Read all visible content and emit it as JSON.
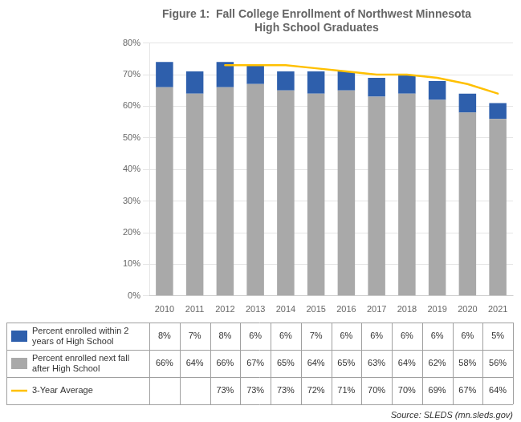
{
  "chart_data": {
    "type": "bar",
    "title": "Figure 1:  Fall College Enrollment of Northwest Minnesota\nHigh School Graduates",
    "categories": [
      2010,
      2011,
      2012,
      2013,
      2014,
      2015,
      2016,
      2017,
      2018,
      2019,
      2020,
      2021
    ],
    "series": [
      {
        "name": "Percent enrolled next fall\nafter High School",
        "type": "bar",
        "color": "#A9A9A9",
        "values": [
          66,
          64,
          66,
          67,
          65,
          64,
          65,
          63,
          64,
          62,
          58,
          56
        ],
        "value_labels": [
          "66%",
          "64%",
          "66%",
          "67%",
          "65%",
          "64%",
          "65%",
          "63%",
          "64%",
          "62%",
          "58%",
          "56%"
        ]
      },
      {
        "name": "Percent enrolled within 2\nyears of High School",
        "type": "bar",
        "color": "#2E5FAC",
        "values": [
          8,
          7,
          8,
          6,
          6,
          7,
          6,
          6,
          6,
          6,
          6,
          5
        ],
        "value_labels": [
          "8%",
          "7%",
          "8%",
          "6%",
          "6%",
          "7%",
          "6%",
          "6%",
          "6%",
          "6%",
          "6%",
          "5%"
        ]
      },
      {
        "name": "3-Year Average",
        "type": "line",
        "color": "#FFC000",
        "values": [
          null,
          null,
          73,
          73,
          73,
          72,
          71,
          70,
          70,
          69,
          67,
          64
        ],
        "value_labels": [
          null,
          null,
          "73%",
          "73%",
          "73%",
          "72%",
          "71%",
          "70%",
          "70%",
          "69%",
          "67%",
          "64%"
        ]
      }
    ],
    "stacked": true,
    "ylim": [
      0,
      80
    ],
    "yticks": [
      {
        "value": 0,
        "label": "0%"
      },
      {
        "value": 10,
        "label": "10%"
      },
      {
        "value": 20,
        "label": "20%"
      },
      {
        "value": 30,
        "label": "30%"
      },
      {
        "value": 40,
        "label": "40%"
      },
      {
        "value": 50,
        "label": "50%"
      },
      {
        "value": 60,
        "label": "60%"
      },
      {
        "value": 70,
        "label": "70%"
      },
      {
        "value": 80,
        "label": "80%"
      }
    ],
    "grid": true,
    "annotations": [
      "Source: SLEDS (mn.sleds.gov)"
    ]
  }
}
